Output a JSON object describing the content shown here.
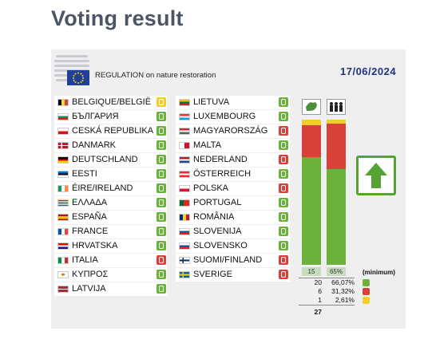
{
  "page_title": "Voting result",
  "regulation": "REGULATION on nature restoration",
  "date": "17/06/2024",
  "icons": {
    "council_logo": "council-logo-icon",
    "eu_flag": "eu-flag-icon",
    "arrow": "arrow-up-icon"
  },
  "colors": {
    "for": "#6ab23a",
    "against": "#d8413a",
    "abstain": "#f1cf2a",
    "title": "#4b5563",
    "date": "#1f3382"
  },
  "countries_left": [
    {
      "name": "BELGIQUE/BELGIË",
      "vote": "abstain"
    },
    {
      "name": "БЪЛГАРИЯ",
      "vote": "for"
    },
    {
      "name": "CESKÁ REPUBLIKA",
      "vote": "for"
    },
    {
      "name": "DANMARK",
      "vote": "for"
    },
    {
      "name": "DEUTSCHLAND",
      "vote": "for"
    },
    {
      "name": "EESTI",
      "vote": "for"
    },
    {
      "name": "ÉIRE/IRELAND",
      "vote": "for"
    },
    {
      "name": "ΕΛΛΑΔΑ",
      "vote": "for"
    },
    {
      "name": "ESPAÑA",
      "vote": "for"
    },
    {
      "name": "FRANCE",
      "vote": "for"
    },
    {
      "name": "HRVATSKA",
      "vote": "for"
    },
    {
      "name": "ITALIA",
      "vote": "against"
    },
    {
      "name": "ΚΥΠΡΟΣ",
      "vote": "for"
    },
    {
      "name": "LATVIJA",
      "vote": "for"
    }
  ],
  "countries_right": [
    {
      "name": "LIETUVA",
      "vote": "for"
    },
    {
      "name": "LUXEMBOURG",
      "vote": "for"
    },
    {
      "name": "MAGYARORSZÁG",
      "vote": "against"
    },
    {
      "name": "MALTA",
      "vote": "for"
    },
    {
      "name": "NEDERLAND",
      "vote": "against"
    },
    {
      "name": "ÖSTERREICH",
      "vote": "for"
    },
    {
      "name": "POLSKA",
      "vote": "against"
    },
    {
      "name": "PORTUGAL",
      "vote": "for"
    },
    {
      "name": "ROMÂNIA",
      "vote": "for"
    },
    {
      "name": "SLOVENIJA",
      "vote": "for"
    },
    {
      "name": "SLOVENSKO",
      "vote": "for"
    },
    {
      "name": "SUOMI/FINLAND",
      "vote": "against"
    },
    {
      "name": "SVERIGE",
      "vote": "against"
    }
  ],
  "member_states_bar": {
    "for": 20,
    "against": 6,
    "abstain": 1,
    "label": "15"
  },
  "population_bar": {
    "for": 66.07,
    "against": 31.32,
    "abstain": 2.61,
    "label": "65%"
  },
  "minimum_label": "(minimum)",
  "tally": [
    {
      "count": "20",
      "pct": "66,07%",
      "vote": "for"
    },
    {
      "count": "6",
      "pct": "31,32%",
      "vote": "against"
    },
    {
      "count": "1",
      "pct": "2,61%",
      "vote": "abstain"
    }
  ],
  "total": "27"
}
